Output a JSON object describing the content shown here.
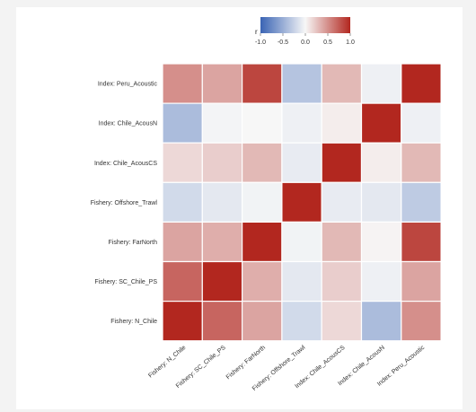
{
  "chart_data": {
    "type": "heatmap",
    "title": "",
    "xlabel": "",
    "ylabel": "",
    "x_categories": [
      "Fishery: N_Chile",
      "Fishery: SC_Chile_PS",
      "Fishery: FarNorth",
      "Fishery: Offshore_Trawl",
      "Index: Chile_AcousCS",
      "Index: Chile_AcousN",
      "Index: Peru_Acoustic"
    ],
    "y_categories": [
      "Index: Peru_Acoustic",
      "Index: Chile_AcousN",
      "Index: Chile_AcousCS",
      "Fishery: Offshore_Trawl",
      "Fishery: FarNorth",
      "Fishery: SC_Chile_PS",
      "Fishery: N_Chile"
    ],
    "values": [
      [
        0.5,
        0.4,
        0.85,
        -0.35,
        0.3,
        -0.05,
        1.0
      ],
      [
        -0.4,
        -0.02,
        0.0,
        -0.05,
        0.05,
        1.0,
        -0.05
      ],
      [
        0.15,
        0.2,
        0.3,
        -0.08,
        1.0,
        0.05,
        0.3
      ],
      [
        -0.2,
        -0.1,
        -0.03,
        1.0,
        -0.08,
        -0.1,
        -0.3
      ],
      [
        0.4,
        0.35,
        1.0,
        -0.03,
        0.3,
        0.02,
        0.85
      ],
      [
        0.7,
        1.0,
        0.35,
        -0.1,
        0.2,
        -0.05,
        0.4
      ],
      [
        1.0,
        0.7,
        0.4,
        -0.2,
        0.15,
        -0.4,
        0.5
      ]
    ],
    "legend": {
      "title": "r",
      "ticks": [
        "-1.0",
        "-0.5",
        "0.0",
        "0.5",
        "1.0"
      ],
      "range": [
        -1,
        1
      ],
      "placement": "top-center"
    },
    "colors": {
      "low": "#3a64b4",
      "mid": "#f7f7f7",
      "high": "#b2271f"
    },
    "grid": false
  }
}
